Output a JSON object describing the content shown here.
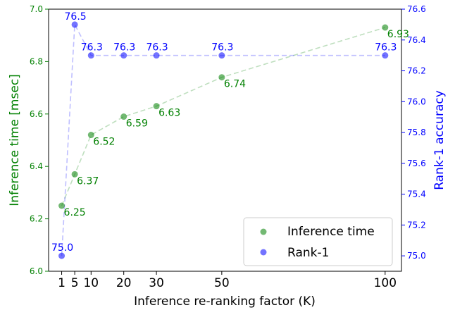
{
  "chart_data": {
    "type": "scatter",
    "title": "",
    "xlabel": "Inference re-ranking factor (K)",
    "ylabel_left": "Inference time [msec]",
    "ylabel_right": "Rank-1 accuracy",
    "xlim": [
      -3,
      105
    ],
    "ylim_left": [
      6.0,
      7.0
    ],
    "ylim_right": [
      74.9,
      76.6
    ],
    "x_ticks": [
      1,
      5,
      10,
      20,
      30,
      50,
      100
    ],
    "y_ticks_left": [
      "6.0",
      "6.2",
      "6.4",
      "6.6",
      "6.8",
      "7.0"
    ],
    "y_ticks_right": [
      "75.0",
      "75.2",
      "75.4",
      "75.6",
      "75.8",
      "76.0",
      "76.2",
      "76.4",
      "76.6"
    ],
    "grid": false,
    "legend_position": "lower-right",
    "series": [
      {
        "name": "Inference time",
        "axis": "left",
        "color": "#008000",
        "x": [
          1,
          5,
          10,
          20,
          30,
          50,
          100
        ],
        "values": [
          6.25,
          6.37,
          6.52,
          6.59,
          6.63,
          6.74,
          6.93
        ],
        "labels": [
          "6.25",
          "6.37",
          "6.52",
          "6.59",
          "6.63",
          "6.74",
          "6.93"
        ]
      },
      {
        "name": "Rank-1",
        "axis": "right",
        "color": "#0000ff",
        "x": [
          1,
          5,
          10,
          20,
          30,
          50,
          100
        ],
        "values": [
          75.0,
          76.5,
          76.3,
          76.3,
          76.3,
          76.3,
          76.3
        ],
        "labels": [
          "75.0",
          "76.5",
          "76.3",
          "76.3",
          "76.3",
          "76.3",
          "76.3"
        ]
      }
    ]
  }
}
